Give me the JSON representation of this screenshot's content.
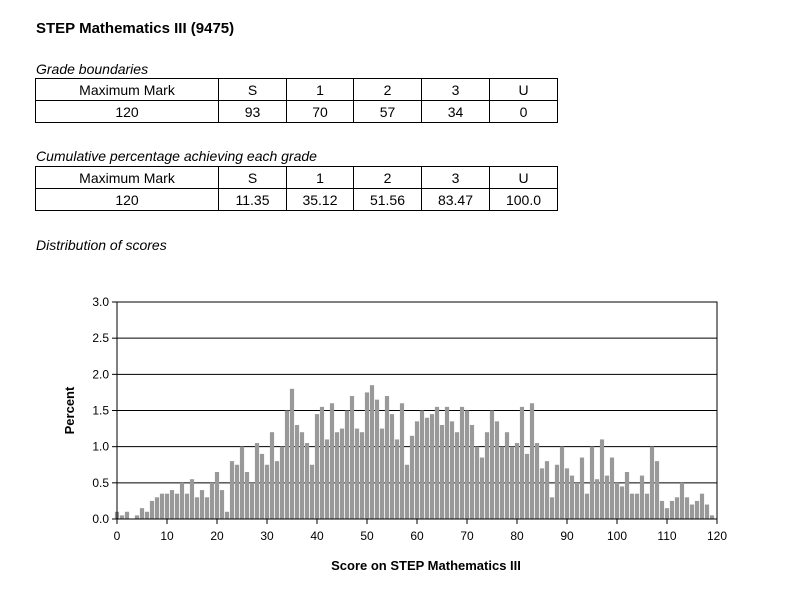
{
  "title": "STEP Mathematics III (9475)",
  "grade_boundaries": {
    "caption": "Grade boundaries",
    "headers": [
      "Maximum Mark",
      "S",
      "1",
      "2",
      "3",
      "U"
    ],
    "values": [
      "120",
      "93",
      "70",
      "57",
      "34",
      "0"
    ]
  },
  "cumulative": {
    "caption": "Cumulative percentage achieving each grade",
    "headers": [
      "Maximum Mark",
      "S",
      "1",
      "2",
      "3",
      "U"
    ],
    "values": [
      "120",
      "11.35",
      "35.12",
      "51.56",
      "83.47",
      "100.0"
    ]
  },
  "distribution_caption": "Distribution of scores",
  "chart_data": {
    "type": "bar",
    "title": "",
    "xlabel": "Score on STEP Mathematics III",
    "ylabel": "Percent",
    "xlim": [
      0,
      120
    ],
    "ylim": [
      0,
      3.0
    ],
    "y_ticks": [
      "0.0",
      "0.5",
      "1.0",
      "1.5",
      "2.0",
      "2.5",
      "3.0"
    ],
    "x_ticks": [
      "0",
      "10",
      "20",
      "30",
      "40",
      "50",
      "60",
      "70",
      "80",
      "90",
      "100",
      "110",
      "120"
    ],
    "grid": "horizontal",
    "bar_color": "#999999",
    "x": [
      0,
      1,
      2,
      3,
      4,
      5,
      6,
      7,
      8,
      9,
      10,
      11,
      12,
      13,
      14,
      15,
      16,
      17,
      18,
      19,
      20,
      21,
      22,
      23,
      24,
      25,
      26,
      27,
      28,
      29,
      30,
      31,
      32,
      33,
      34,
      35,
      36,
      37,
      38,
      39,
      40,
      41,
      42,
      43,
      44,
      45,
      46,
      47,
      48,
      49,
      50,
      51,
      52,
      53,
      54,
      55,
      56,
      57,
      58,
      59,
      60,
      61,
      62,
      63,
      64,
      65,
      66,
      67,
      68,
      69,
      70,
      71,
      72,
      73,
      74,
      75,
      76,
      77,
      78,
      79,
      80,
      81,
      82,
      83,
      84,
      85,
      86,
      87,
      88,
      89,
      90,
      91,
      92,
      93,
      94,
      95,
      96,
      97,
      98,
      99,
      100,
      101,
      102,
      103,
      104,
      105,
      106,
      107,
      108,
      109,
      110,
      111,
      112,
      113,
      114,
      115,
      116,
      117,
      118,
      119,
      120
    ],
    "values": [
      0.1,
      0.05,
      0.1,
      0.0,
      0.05,
      0.15,
      0.1,
      0.25,
      0.3,
      0.35,
      0.35,
      0.4,
      0.35,
      0.5,
      0.35,
      0.55,
      0.3,
      0.4,
      0.3,
      0.5,
      0.65,
      0.4,
      0.1,
      0.8,
      0.75,
      1.0,
      0.65,
      0.5,
      1.05,
      0.9,
      0.75,
      1.2,
      0.8,
      1.0,
      1.5,
      1.8,
      1.3,
      1.2,
      1.05,
      0.75,
      1.45,
      1.55,
      1.1,
      1.6,
      1.2,
      1.25,
      1.5,
      1.7,
      1.25,
      1.2,
      1.75,
      1.85,
      1.65,
      1.25,
      1.7,
      1.45,
      1.1,
      1.6,
      0.75,
      1.15,
      1.35,
      1.5,
      1.4,
      1.45,
      1.55,
      1.3,
      1.55,
      1.35,
      1.2,
      1.55,
      1.5,
      1.3,
      1.0,
      0.85,
      1.2,
      1.5,
      1.35,
      1.0,
      1.2,
      1.0,
      1.05,
      1.55,
      0.9,
      1.6,
      1.05,
      0.7,
      0.8,
      0.3,
      0.75,
      1.0,
      0.7,
      0.6,
      0.5,
      0.85,
      0.35,
      1.0,
      0.55,
      1.1,
      0.6,
      0.85,
      0.5,
      0.45,
      0.65,
      0.35,
      0.35,
      0.6,
      0.35,
      1.0,
      0.8,
      0.25,
      0.15,
      0.25,
      0.3,
      0.5,
      0.3,
      0.2,
      0.25,
      0.35,
      0.2,
      0.05,
      0.0
    ]
  }
}
